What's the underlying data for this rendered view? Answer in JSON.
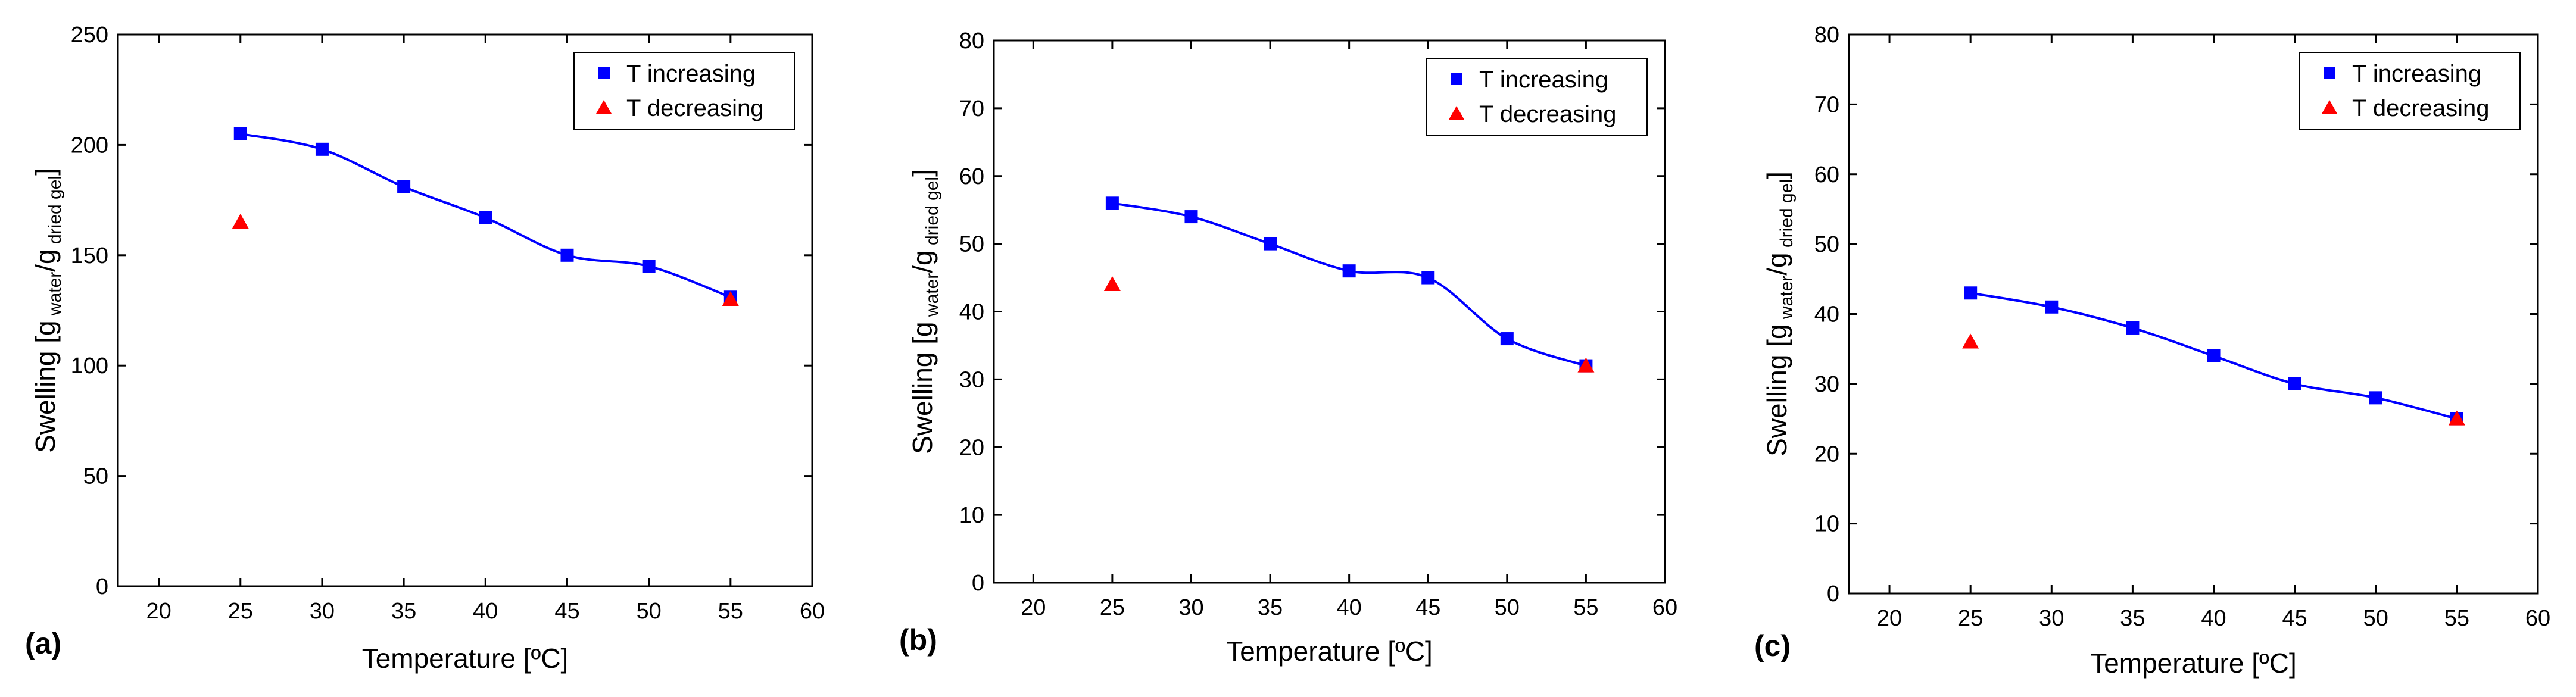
{
  "chart_data": [
    {
      "panel_label": "(a)",
      "type": "scatter",
      "xlabel": "Temperature [ºC]",
      "ylabel": {
        "main": "Swelling [g",
        "sub1": "water",
        "mid": "/g",
        "sub2": "dried gel",
        "end": "]"
      },
      "xlim": [
        17.5,
        60
      ],
      "ylim": [
        0,
        250
      ],
      "xticks": [
        20,
        25,
        30,
        35,
        40,
        45,
        50,
        55,
        60
      ],
      "yticks": [
        0,
        50,
        100,
        150,
        200,
        250
      ],
      "legend": "top-right",
      "series": [
        {
          "name": "T increasing",
          "marker": "square",
          "color": "#0000ff",
          "fit_line": true,
          "x": [
            25,
            30,
            35,
            40,
            45,
            50,
            55
          ],
          "y": [
            205,
            198,
            181,
            167,
            150,
            145,
            131
          ]
        },
        {
          "name": "T decreasing",
          "marker": "triangle",
          "color": "#ff0000",
          "fit_line": false,
          "x": [
            25,
            55
          ],
          "y": [
            165,
            130
          ]
        }
      ]
    },
    {
      "panel_label": "(b)",
      "type": "scatter",
      "xlabel": "Temperature [ºC]",
      "ylabel": {
        "main": "Swelling [g",
        "sub1": "water",
        "mid": "/g",
        "sub2": "dried gel",
        "end": "]"
      },
      "xlim": [
        17.5,
        60
      ],
      "ylim": [
        0,
        80
      ],
      "xticks": [
        20,
        25,
        30,
        35,
        40,
        45,
        50,
        55,
        60
      ],
      "yticks": [
        0,
        10,
        20,
        30,
        40,
        50,
        60,
        70,
        80
      ],
      "legend": "top-right",
      "series": [
        {
          "name": "T increasing",
          "marker": "square",
          "color": "#0000ff",
          "fit_line": true,
          "x": [
            25,
            30,
            35,
            40,
            45,
            50,
            55
          ],
          "y": [
            56,
            54,
            50,
            46,
            45,
            36,
            32
          ]
        },
        {
          "name": "T decreasing",
          "marker": "triangle",
          "color": "#ff0000",
          "fit_line": false,
          "x": [
            25,
            55
          ],
          "y": [
            44,
            32
          ]
        }
      ]
    },
    {
      "panel_label": "(c)",
      "type": "scatter",
      "xlabel": "Temperature [ºC]",
      "ylabel": {
        "main": "Swelling [g",
        "sub1": "water",
        "mid": "/g",
        "sub2": "dried gel",
        "end": "]"
      },
      "xlim": [
        17.5,
        60
      ],
      "ylim": [
        0,
        80
      ],
      "xticks": [
        20,
        25,
        30,
        35,
        40,
        45,
        50,
        55,
        60
      ],
      "yticks": [
        0,
        10,
        20,
        30,
        40,
        50,
        60,
        70,
        80
      ],
      "legend": "top-right",
      "series": [
        {
          "name": "T increasing",
          "marker": "square",
          "color": "#0000ff",
          "fit_line": true,
          "x": [
            25,
            30,
            35,
            40,
            45,
            50,
            55
          ],
          "y": [
            43,
            41,
            38,
            34,
            30,
            28,
            25
          ]
        },
        {
          "name": "T decreasing",
          "marker": "triangle",
          "color": "#ff0000",
          "fit_line": false,
          "x": [
            25,
            55
          ],
          "y": [
            36,
            25
          ]
        }
      ]
    }
  ]
}
